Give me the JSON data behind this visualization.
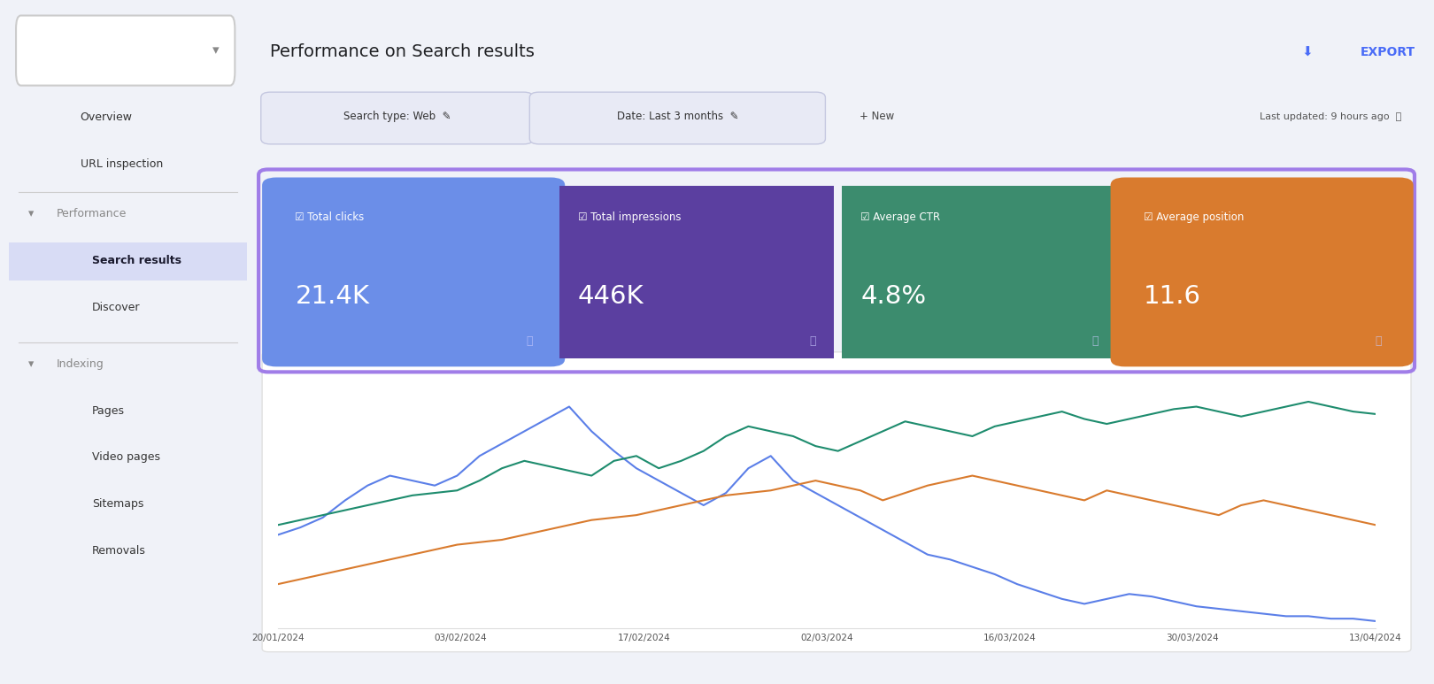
{
  "title": "Performance on Search results",
  "export_text": "EXPORT",
  "filter1": "Search type: Web",
  "filter2": "Date: Last 3 months",
  "filter3": "+ New",
  "last_updated": "Last updated: 9 hours ago",
  "metrics": [
    {
      "label": "Total clicks",
      "value": "21.4K",
      "bg_color": "#6b8ee8"
    },
    {
      "label": "Total impressions",
      "value": "446K",
      "bg_color": "#5b3fa0"
    },
    {
      "label": "Average CTR",
      "value": "4.8%",
      "bg_color": "#3c8c6e"
    },
    {
      "label": "Average position",
      "value": "11.6",
      "bg_color": "#d97b2e"
    }
  ],
  "sidebar_bg": "#f0f2f8",
  "main_bg": "#f8f9fc",
  "card_border_color": "#a07de8",
  "x_labels": [
    "20/01/2024",
    "03/02/2024",
    "17/02/2024",
    "02/03/2024",
    "16/03/2024",
    "30/03/2024",
    "13/04/2024"
  ],
  "line_blue": [
    0.38,
    0.41,
    0.45,
    0.52,
    0.58,
    0.62,
    0.6,
    0.58,
    0.62,
    0.7,
    0.75,
    0.8,
    0.85,
    0.9,
    0.8,
    0.72,
    0.65,
    0.6,
    0.55,
    0.5,
    0.55,
    0.65,
    0.7,
    0.6,
    0.55,
    0.5,
    0.45,
    0.4,
    0.35,
    0.3,
    0.28,
    0.25,
    0.22,
    0.18,
    0.15,
    0.12,
    0.1,
    0.12,
    0.14,
    0.13,
    0.11,
    0.09,
    0.08,
    0.07,
    0.06,
    0.05,
    0.05,
    0.04,
    0.04,
    0.03
  ],
  "line_green": [
    0.42,
    0.44,
    0.46,
    0.48,
    0.5,
    0.52,
    0.54,
    0.55,
    0.56,
    0.6,
    0.65,
    0.68,
    0.66,
    0.64,
    0.62,
    0.68,
    0.7,
    0.65,
    0.68,
    0.72,
    0.78,
    0.82,
    0.8,
    0.78,
    0.74,
    0.72,
    0.76,
    0.8,
    0.84,
    0.82,
    0.8,
    0.78,
    0.82,
    0.84,
    0.86,
    0.88,
    0.85,
    0.83,
    0.85,
    0.87,
    0.89,
    0.9,
    0.88,
    0.86,
    0.88,
    0.9,
    0.92,
    0.9,
    0.88,
    0.87
  ],
  "line_orange": [
    0.18,
    0.2,
    0.22,
    0.24,
    0.26,
    0.28,
    0.3,
    0.32,
    0.34,
    0.35,
    0.36,
    0.38,
    0.4,
    0.42,
    0.44,
    0.45,
    0.46,
    0.48,
    0.5,
    0.52,
    0.54,
    0.55,
    0.56,
    0.58,
    0.6,
    0.58,
    0.56,
    0.52,
    0.55,
    0.58,
    0.6,
    0.62,
    0.6,
    0.58,
    0.56,
    0.54,
    0.52,
    0.56,
    0.54,
    0.52,
    0.5,
    0.48,
    0.46,
    0.5,
    0.52,
    0.5,
    0.48,
    0.46,
    0.44,
    0.42
  ],
  "line_blue_color": "#5b7fe8",
  "line_green_color": "#1e8c6e",
  "line_orange_color": "#d97b2e"
}
